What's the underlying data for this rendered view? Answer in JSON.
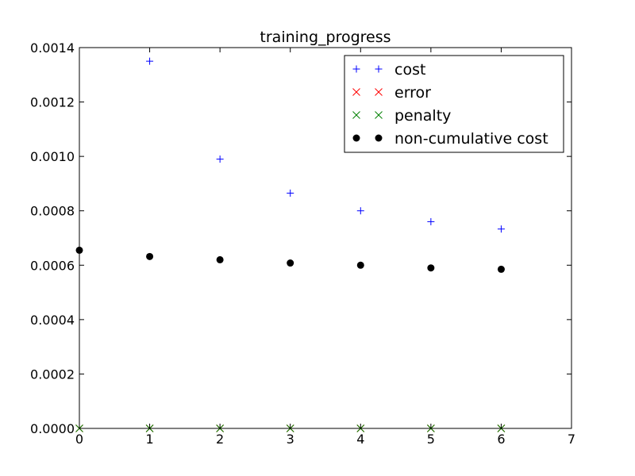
{
  "chart_data": {
    "type": "scatter",
    "title": "training_progress",
    "xlabel": "",
    "ylabel": "",
    "xlim": [
      0,
      7
    ],
    "ylim": [
      0,
      0.0014
    ],
    "x_ticks": [
      0,
      1,
      2,
      3,
      4,
      5,
      6,
      7
    ],
    "y_ticks": [
      0.0,
      0.0002,
      0.0004,
      0.0006,
      0.0008,
      0.001,
      0.0012,
      0.0014
    ],
    "x_tick_labels": [
      "0",
      "1",
      "2",
      "3",
      "4",
      "5",
      "6",
      "7"
    ],
    "y_tick_labels": [
      "0.0000",
      "0.0002",
      "0.0004",
      "0.0006",
      "0.0008",
      "0.0010",
      "0.0012",
      "0.0014"
    ],
    "grid": false,
    "legend_position": "top-right",
    "series": [
      {
        "name": "cost",
        "marker": "plus",
        "color": "#0000ff",
        "x": [
          0,
          1,
          2,
          3,
          4,
          5,
          6
        ],
        "y": [
          null,
          0.00135,
          0.00099,
          0.000865,
          0.0008,
          0.00076,
          0.000733
        ]
      },
      {
        "name": "error",
        "marker": "x",
        "color": "#ff0000",
        "x": [
          0,
          1,
          2,
          3,
          4,
          5,
          6
        ],
        "y": [
          0,
          0,
          0,
          0,
          0,
          0,
          0
        ]
      },
      {
        "name": "penalty",
        "marker": "x",
        "color": "#008000",
        "x": [
          0,
          1,
          2,
          3,
          4,
          5,
          6
        ],
        "y": [
          0,
          0,
          0,
          0,
          0,
          0,
          0
        ]
      },
      {
        "name": "non-cumulative cost",
        "marker": "circle",
        "color": "#000000",
        "x": [
          0,
          1,
          2,
          3,
          4,
          5,
          6
        ],
        "y": [
          0.000655,
          0.000632,
          0.00062,
          0.000608,
          0.0006,
          0.00059,
          0.000585
        ]
      }
    ]
  }
}
